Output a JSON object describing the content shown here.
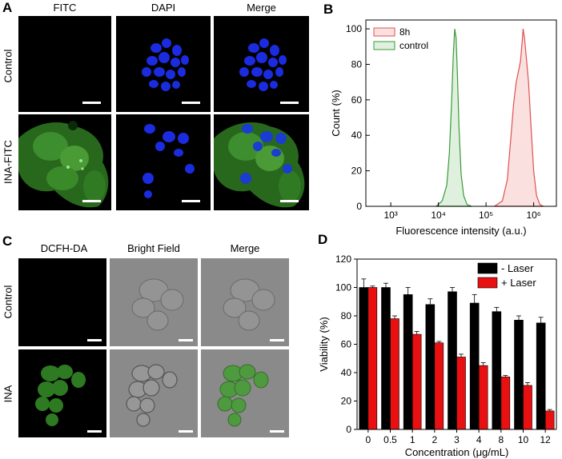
{
  "panels": {
    "A": {
      "letter": "A",
      "columns": [
        "FITC",
        "DAPI",
        "Merge"
      ],
      "rows": [
        "Control",
        "INA-FITC"
      ]
    },
    "B": {
      "letter": "B"
    },
    "C": {
      "letter": "C",
      "columns": [
        "DCFH-DA",
        "Bright Field",
        "Merge"
      ],
      "rows": [
        "Control",
        "INA"
      ]
    },
    "D": {
      "letter": "D"
    }
  },
  "colors": {
    "fitc_green": "#3a8a2a",
    "dapi_blue": "#1a2ad8",
    "laser_off": "#000000",
    "laser_on": "#e81010",
    "hist_8h": "#e05050",
    "hist_control": "#3a9a3a"
  },
  "chart_data": [
    {
      "type": "area",
      "panel": "B",
      "xlabel": "Fluorescence intensity (a.u.)",
      "ylabel": "Count (%)",
      "x_scale": "log",
      "xlim": [
        300,
        3000000
      ],
      "ylim": [
        0,
        105
      ],
      "x_tick_labels": [
        "10³",
        "10⁴",
        "10⁵",
        "10⁶"
      ],
      "x_ticks": [
        1000,
        10000,
        100000,
        1000000
      ],
      "y_ticks": [
        0,
        20,
        40,
        60,
        80,
        100
      ],
      "legend_position": "top-left",
      "series": [
        {
          "name": "8h",
          "color": "#e05050",
          "fill": "#fbe0e0",
          "x": [
            150000,
            220000,
            280000,
            330000,
            380000,
            430000,
            480000,
            530000,
            570000,
            600000,
            640000,
            700000,
            780000,
            880000,
            1000000,
            1150000,
            1350000,
            1600000
          ],
          "y": [
            0,
            3,
            15,
            38,
            58,
            70,
            76,
            82,
            92,
            100,
            95,
            84,
            70,
            45,
            20,
            6,
            1,
            0
          ]
        },
        {
          "name": "control",
          "color": "#3a9a3a",
          "fill": "#dff0df",
          "x": [
            9000,
            12000,
            15000,
            17000,
            19000,
            20500,
            22000,
            23500,
            25000,
            27000,
            30000,
            34000,
            40000,
            50000
          ],
          "y": [
            0,
            3,
            12,
            30,
            60,
            85,
            100,
            95,
            75,
            45,
            18,
            6,
            1,
            0
          ]
        }
      ]
    },
    {
      "type": "bar",
      "panel": "D",
      "xlabel": "Concentration (μg/mL)",
      "ylabel": "Viability (%)",
      "categories": [
        "0",
        "0.5",
        "1",
        "2",
        "3",
        "4",
        "8",
        "10",
        "12"
      ],
      "ylim": [
        0,
        120
      ],
      "y_ticks": [
        0,
        20,
        40,
        60,
        80,
        100,
        120
      ],
      "legend_position": "top-right",
      "series": [
        {
          "name": "- Laser",
          "color": "#000000",
          "values": [
            100,
            100,
            95,
            88,
            97,
            89,
            83,
            77,
            75
          ],
          "errors": [
            6,
            3,
            5,
            4,
            3,
            6,
            3,
            3,
            4
          ]
        },
        {
          "name": "+ Laser",
          "color": "#e81010",
          "values": [
            100,
            78,
            67,
            61,
            51,
            45,
            37,
            31,
            13
          ],
          "errors": [
            1,
            2,
            2,
            1,
            2,
            2,
            1,
            2,
            1
          ]
        }
      ]
    }
  ]
}
